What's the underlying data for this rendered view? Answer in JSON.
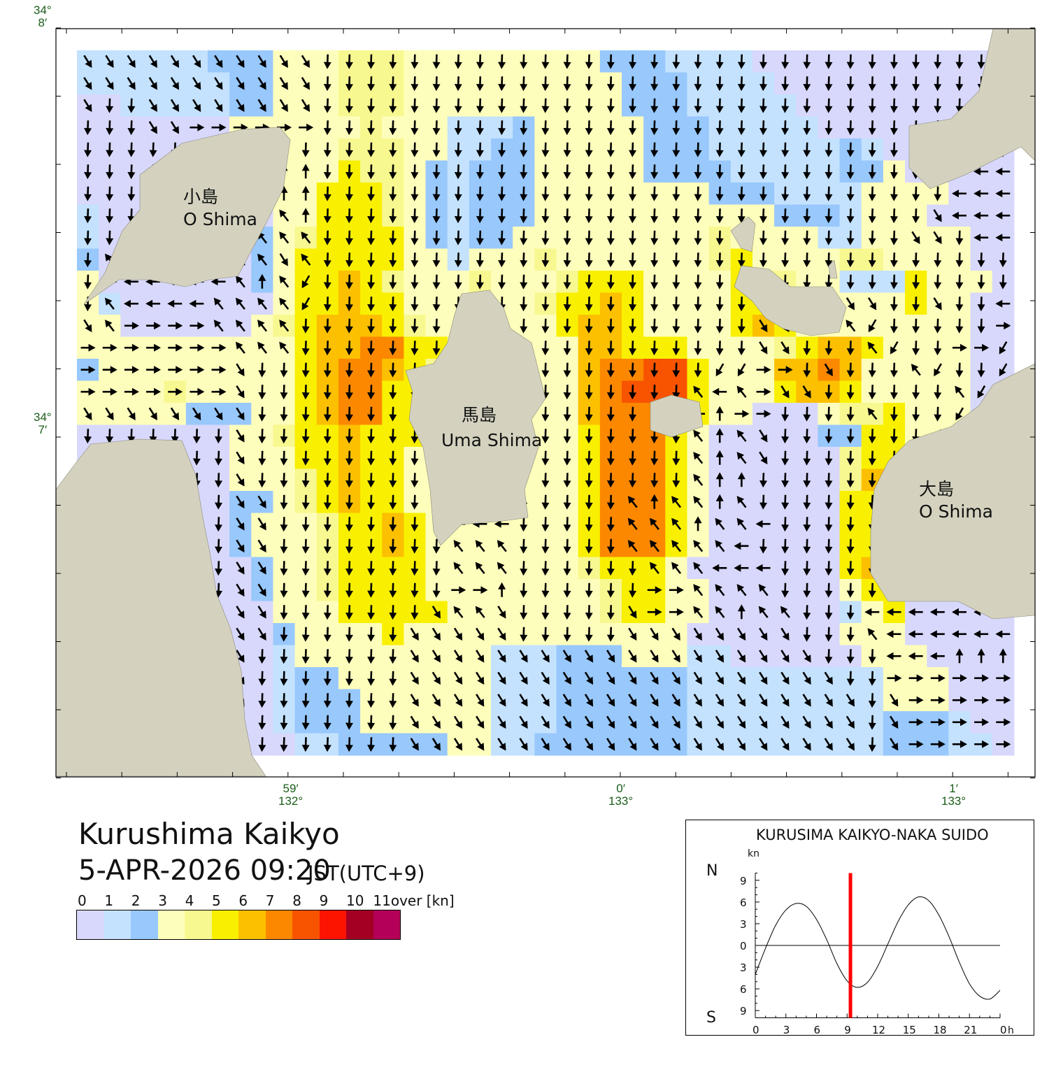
{
  "map": {
    "title": "Kurushima Kaikyo",
    "datetime": "5-APR-2026 09:20",
    "timezone": "JST(UTC+9)",
    "lat_labels": [
      {
        "deg": "34°",
        "min": "8′"
      },
      {
        "deg": "34°",
        "min": "7′"
      }
    ],
    "lon_labels": [
      {
        "min": "59′",
        "deg": "132°"
      },
      {
        "min": "0′",
        "deg": "133°"
      },
      {
        "min": "1′",
        "deg": "133°"
      }
    ],
    "islands": [
      {
        "jp": "小島",
        "en": "O Shima"
      },
      {
        "jp": "馬島",
        "en": "Uma Shima"
      },
      {
        "jp": "大島",
        "en": "O Shima"
      }
    ],
    "colors": {
      "land": "#d4d2bf",
      "water_bg": "#ffffff",
      "arrow": "#000000",
      "axis_label": "#1a5c1a"
    },
    "speed_classes_note_legend_index": true,
    "speed_grid": [
      "1111112223334443333333332221111000000000000",
      "1111111223334443333333333222111100000000000",
      "0011111223334443333333333222111110000000000",
      "0000000333333433311123333322211111000000000",
      "0000000003334443311223333322211111121000000",
      "0000000003335443212223333322221111122300000",
      "0000000003355543212223333333322211113333000",
      "1000000003355543212223333333333322213330000",
      "1000000023455553212233333333343333113333300",
      "2000000023555553313334333333345333344333300",
      "3000000023556543334333455533335443311153330",
      "3100000003556553333334556533335543333353300",
      "3300000034566654333333566533335653333333300",
      "3333333333566775543333366555333345665333300",
      "2333333333567765433333367788533366763333300",
      "3333433333567755433333367888533356653333300",
      "3333322233567755433333367777533000344533300",
      "0000000334556555333333357775300000225533300",
      "0000000333556553333333357775300000045563000",
      "0000000333456553333333357775300000046663000",
      "0000000223456553333333357775300000055663000",
      "0000000233345565333333357775300000055663000",
      "0000000233345565333333357775300000055660000",
      "0000000023345555333333345553000000056650000",
      "0000000023345555333333334553300000035500000",
      "0000000003335555533333334553300000013500000",
      "0000000002333353333333333333000000033300000",
      "0000000001333333333111222333110000003330000",
      "0000000001223333333111222222111111111333000",
      "0000000001222333333111222222111111111333000",
      "0000000001222333333111222222111111111222100",
      "0000000000112222233112222222111111111222110"
    ],
    "direction_codes": {
      "r": "E",
      "e": "ESE",
      "d": "SE",
      "s": "S",
      "l": "SW",
      "w": "W",
      "q": "NW",
      "n": "N"
    },
    "direction_grid": [
      "ddddddddddds",
      "ddddddddddds",
      "dssdddddddds",
      "sssddrrrrrrs",
      "sssssssssnss",
      "sssssssssnnsssssssssssssssssssssssssssswwww",
      "ssssssssdnnssssssssssssssssssssssssssssswww",
      "ssssssssqqnssssssssssssssssssssssssssssdwww",
      "ssssqeedqqqsssssssssssssssssssssssssssddsww",
      "sqqddqqqqdqssssssssssssssssssssssssssssssss",
      "swwwwwwqnqlssssssssssssssssssssssssssssssssn",
      "sqwwwwqqqqlssssssssssssssssssssssssddssdssw",
      "dqrrrrqqqqssssssssllsssssssssssddssqlsssssr",
      "rrrrrrrqqqsssssssssssssssssssssddsssqlssrrl",
      "rrrrrrrdsssssssssssssssssssssllrrsdsssqlssl",
      "rrrrrrrdssssssssssssssssssssqwqrddssssssqll",
      "ddddddddssssssssssssssssssswwnrrssssqsssll",
      "sssssssdssssssssssssssssssssqnqdsssssssl",
      "sssssssdssssssssssssssssssssqnqdssss",
      "sssssssdssssssssssssssssssssqnnsssss",
      "sssssssddssssssssssssssssqnqqnqsssss",
      "sssssssddsssssssswwwsssssqqqnqqwsssss",
      "sssssssddssssssssqqqsssssqqqqqwssssssw",
      "sssssssddssssssssqqqssssssqqqwwwsssss",
      "sssssssddssssssssrrnssssssrrqqqqssssswwww",
      "sssssssddsssssssdqqdsssssdrrqqnqqssswwwwwww",
      "sssssssddssssssdddddsssssddddddddsssqwwwwww",
      "sssssssdsssssssdddddddddddddddddddssswwwnnn",
      "sssssssdsssssssddddddddddddddddddddssrrrrrr",
      "sssssssdsssssssdddddddddddddddddddddsdrrrrr",
      "sssssssdsssssssdddddddddddddddddddddsdrrrrr",
      "sssssssdsssssssdddddddddddddddddddddsdrrrrr"
    ]
  },
  "legend": {
    "labels": [
      "0",
      "1",
      "2",
      "3",
      "4",
      "5",
      "6",
      "7",
      "8",
      "9",
      "10",
      "11over [kn]"
    ],
    "colors": [
      "#d8d8fc",
      "#c4e2fe",
      "#98c8fc",
      "#fefebc",
      "#f8f890",
      "#f8f000",
      "#fcc000",
      "#fc8800",
      "#f85400",
      "#fc1400",
      "#a40024",
      "#b40058"
    ]
  },
  "tide_chart": {
    "type": "line",
    "title": "KURUSIMA KAIKYO-NAKA SUIDO",
    "ylabel": "kn",
    "north_label": "N",
    "south_label": "S",
    "y_tick_labels": [
      "9",
      "6",
      "3",
      "0",
      "3",
      "6",
      "9"
    ],
    "y_ticks": [
      9,
      6,
      3,
      0,
      -3,
      -6,
      -9
    ],
    "x_tick_labels": [
      "0",
      "3",
      "6",
      "9",
      "12",
      "15",
      "18",
      "21",
      "0"
    ],
    "x_unit": "h",
    "xlim": [
      0,
      24
    ],
    "ylim": [
      -10,
      10
    ],
    "current_time_h": 9.33,
    "current_marker_color": "#ff0000",
    "series": [
      [
        0,
        -4
      ],
      [
        1,
        -0.4
      ],
      [
        2,
        2.8
      ],
      [
        3,
        4.9
      ],
      [
        4,
        5.8
      ],
      [
        5,
        5.4
      ],
      [
        6,
        3.6
      ],
      [
        7,
        0.8
      ],
      [
        8,
        -2.5
      ],
      [
        9,
        -4.9
      ],
      [
        10,
        -5.8
      ],
      [
        11,
        -5.1
      ],
      [
        12,
        -2.9
      ],
      [
        13,
        0.2
      ],
      [
        14,
        3.3
      ],
      [
        15,
        5.6
      ],
      [
        16,
        6.7
      ],
      [
        17,
        6.2
      ],
      [
        18,
        4.2
      ],
      [
        19,
        1.2
      ],
      [
        20,
        -2.3
      ],
      [
        21,
        -5.3
      ],
      [
        22,
        -7.0
      ],
      [
        23,
        -7.4
      ],
      [
        24,
        -6.2
      ]
    ]
  }
}
